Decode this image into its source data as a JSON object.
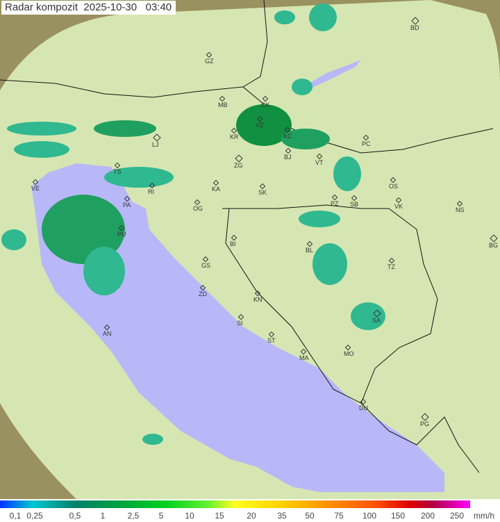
{
  "title": "Radar kompozit  2025-10-30   03:40",
  "legend": {
    "unit": "mm/h",
    "ticks": [
      "0,1",
      "0,25",
      "0,5",
      "1",
      "2,5",
      "5",
      "10",
      "15",
      "20",
      "35",
      "50",
      "75",
      "100",
      "150",
      "200",
      "250"
    ]
  },
  "cities": [
    "GZ",
    "BD",
    "MB",
    "CK",
    "VZ",
    "KR",
    "KC",
    "LJ",
    "PC",
    "BJ",
    "VT",
    "ZG",
    "TS",
    "VE",
    "KA",
    "SK",
    "RI",
    "OS",
    "PA",
    "OG",
    "PZ",
    "SB",
    "VK",
    "NS",
    "PU",
    "BI",
    "BG",
    "BL",
    "TZ",
    "GS",
    "ZD",
    "KN",
    "SI",
    "SA",
    "AN",
    "ST",
    "MA",
    "MO",
    "DU",
    "PG"
  ],
  "colors": {
    "sea": "#b8b8f8",
    "land": "#d8e8b0",
    "outside": "#a09860",
    "rain_light": "#30b890",
    "rain_heavy": "#109040"
  }
}
